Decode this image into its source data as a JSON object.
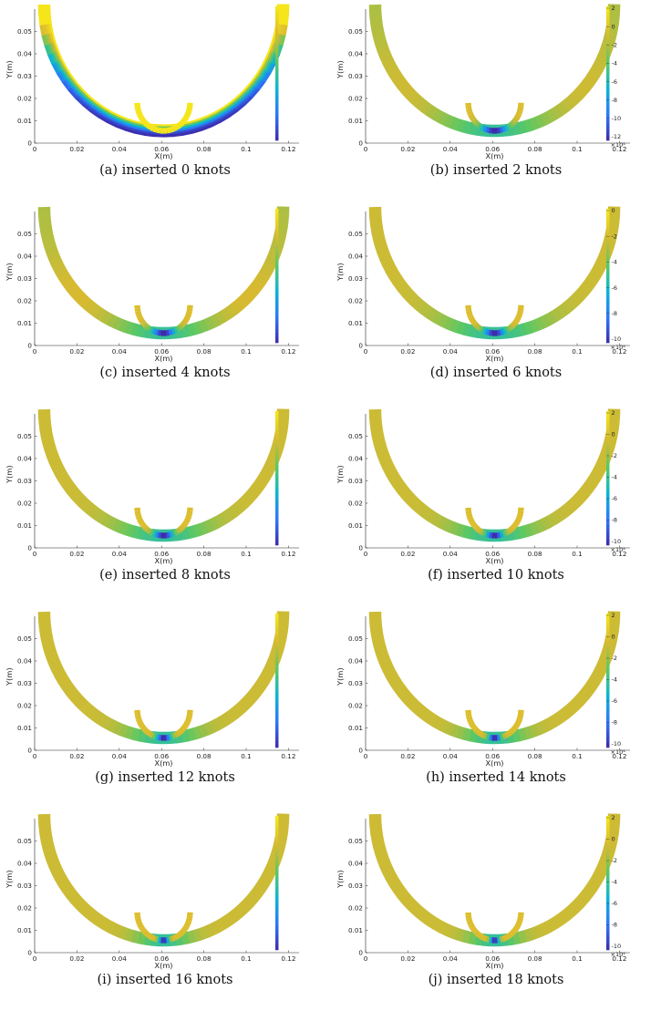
{
  "figure": {
    "x_label": "X(m)",
    "y_label": "Y(m)",
    "x_ticks": [
      "0",
      "0.02",
      "0.04",
      "0.06",
      "0.08",
      "0.1",
      "0.12"
    ],
    "y_ticks": [
      "0",
      "0.01",
      "0.02",
      "0.03",
      "0.04",
      "0.05"
    ],
    "colormap": [
      "#3e26a8",
      "#2d76f9",
      "#0bb6d3",
      "#5cc863",
      "#d9ba30",
      "#f5e51b"
    ]
  },
  "chart_data": [
    {
      "type": "heatmap",
      "label": "(a)",
      "caption": "(a)  inserted 0 knots",
      "knots": 0,
      "xlabel": "X(m)",
      "ylabel": "Y(m)",
      "xlim": [
        0,
        0.125
      ],
      "ylim": [
        0,
        0.06
      ],
      "colorbar_labels": []
    },
    {
      "type": "heatmap",
      "label": "(b)",
      "caption": "(b)  inserted 2 knots",
      "knots": 2,
      "xlabel": "X(m)",
      "ylabel": "Y(m)",
      "xlim": [
        0,
        0.125
      ],
      "ylim": [
        0,
        0.06
      ],
      "colorbar_labels": [
        "2",
        "0",
        "-2",
        "-4",
        "-6",
        "-8",
        "-10",
        "-12"
      ],
      "colorbar_exponent": "×10⁴"
    },
    {
      "type": "heatmap",
      "label": "(c)",
      "caption": "(c)  inserted 4 knots",
      "knots": 4,
      "xlabel": "X(m)",
      "ylabel": "Y(m)",
      "xlim": [
        0,
        0.125
      ],
      "ylim": [
        0,
        0.06
      ],
      "colorbar_labels": []
    },
    {
      "type": "heatmap",
      "label": "(d)",
      "caption": "(d)  inserted 6 knots",
      "knots": 6,
      "xlabel": "X(m)",
      "ylabel": "Y(m)",
      "xlim": [
        0,
        0.125
      ],
      "ylim": [
        0,
        0.06
      ],
      "colorbar_labels": [
        "0",
        "-2",
        "-4",
        "-6",
        "-8",
        "-10"
      ],
      "colorbar_exponent": "×10⁴"
    },
    {
      "type": "heatmap",
      "label": "(e)",
      "caption": "(e)  inserted 8 knots",
      "knots": 8,
      "xlabel": "X(m)",
      "ylabel": "Y(m)",
      "xlim": [
        0,
        0.125
      ],
      "ylim": [
        0,
        0.06
      ],
      "colorbar_labels": []
    },
    {
      "type": "heatmap",
      "label": "(f)",
      "caption": "(f)  inserted 10 knots",
      "knots": 10,
      "xlabel": "X(m)",
      "ylabel": "Y(m)",
      "xlim": [
        0,
        0.125
      ],
      "ylim": [
        0,
        0.06
      ],
      "colorbar_labels": [
        "2",
        "0",
        "-2",
        "-4",
        "-6",
        "-8",
        "-10"
      ],
      "colorbar_exponent": "×10⁴"
    },
    {
      "type": "heatmap",
      "label": "(g)",
      "caption": "(g)  inserted 12 knots",
      "knots": 12,
      "xlabel": "X(m)",
      "ylabel": "Y(m)",
      "xlim": [
        0,
        0.125
      ],
      "ylim": [
        0,
        0.06
      ],
      "colorbar_labels": []
    },
    {
      "type": "heatmap",
      "label": "(h)",
      "caption": "(h)  inserted 14 knots",
      "knots": 14,
      "xlabel": "X(m)",
      "ylabel": "Y(m)",
      "xlim": [
        0,
        0.125
      ],
      "ylim": [
        0,
        0.06
      ],
      "colorbar_labels": [
        "2",
        "0",
        "-2",
        "-4",
        "-6",
        "-8",
        "-10"
      ],
      "colorbar_exponent": "×10⁴"
    },
    {
      "type": "heatmap",
      "label": "(i)",
      "caption": "(i)  inserted 16 knots",
      "knots": 16,
      "xlabel": "X(m)",
      "ylabel": "Y(m)",
      "xlim": [
        0,
        0.125
      ],
      "ylim": [
        0,
        0.06
      ],
      "colorbar_labels": []
    },
    {
      "type": "heatmap",
      "label": "(j)",
      "caption": "(j)  inserted 18 knots",
      "knots": 18,
      "xlabel": "X(m)",
      "ylabel": "Y(m)",
      "xlim": [
        0,
        0.125
      ],
      "ylim": [
        0,
        0.06
      ],
      "colorbar_labels": [
        "2",
        "0",
        "-2",
        "-4",
        "-6",
        "-8",
        "-10"
      ],
      "colorbar_exponent": "×10⁴"
    }
  ]
}
